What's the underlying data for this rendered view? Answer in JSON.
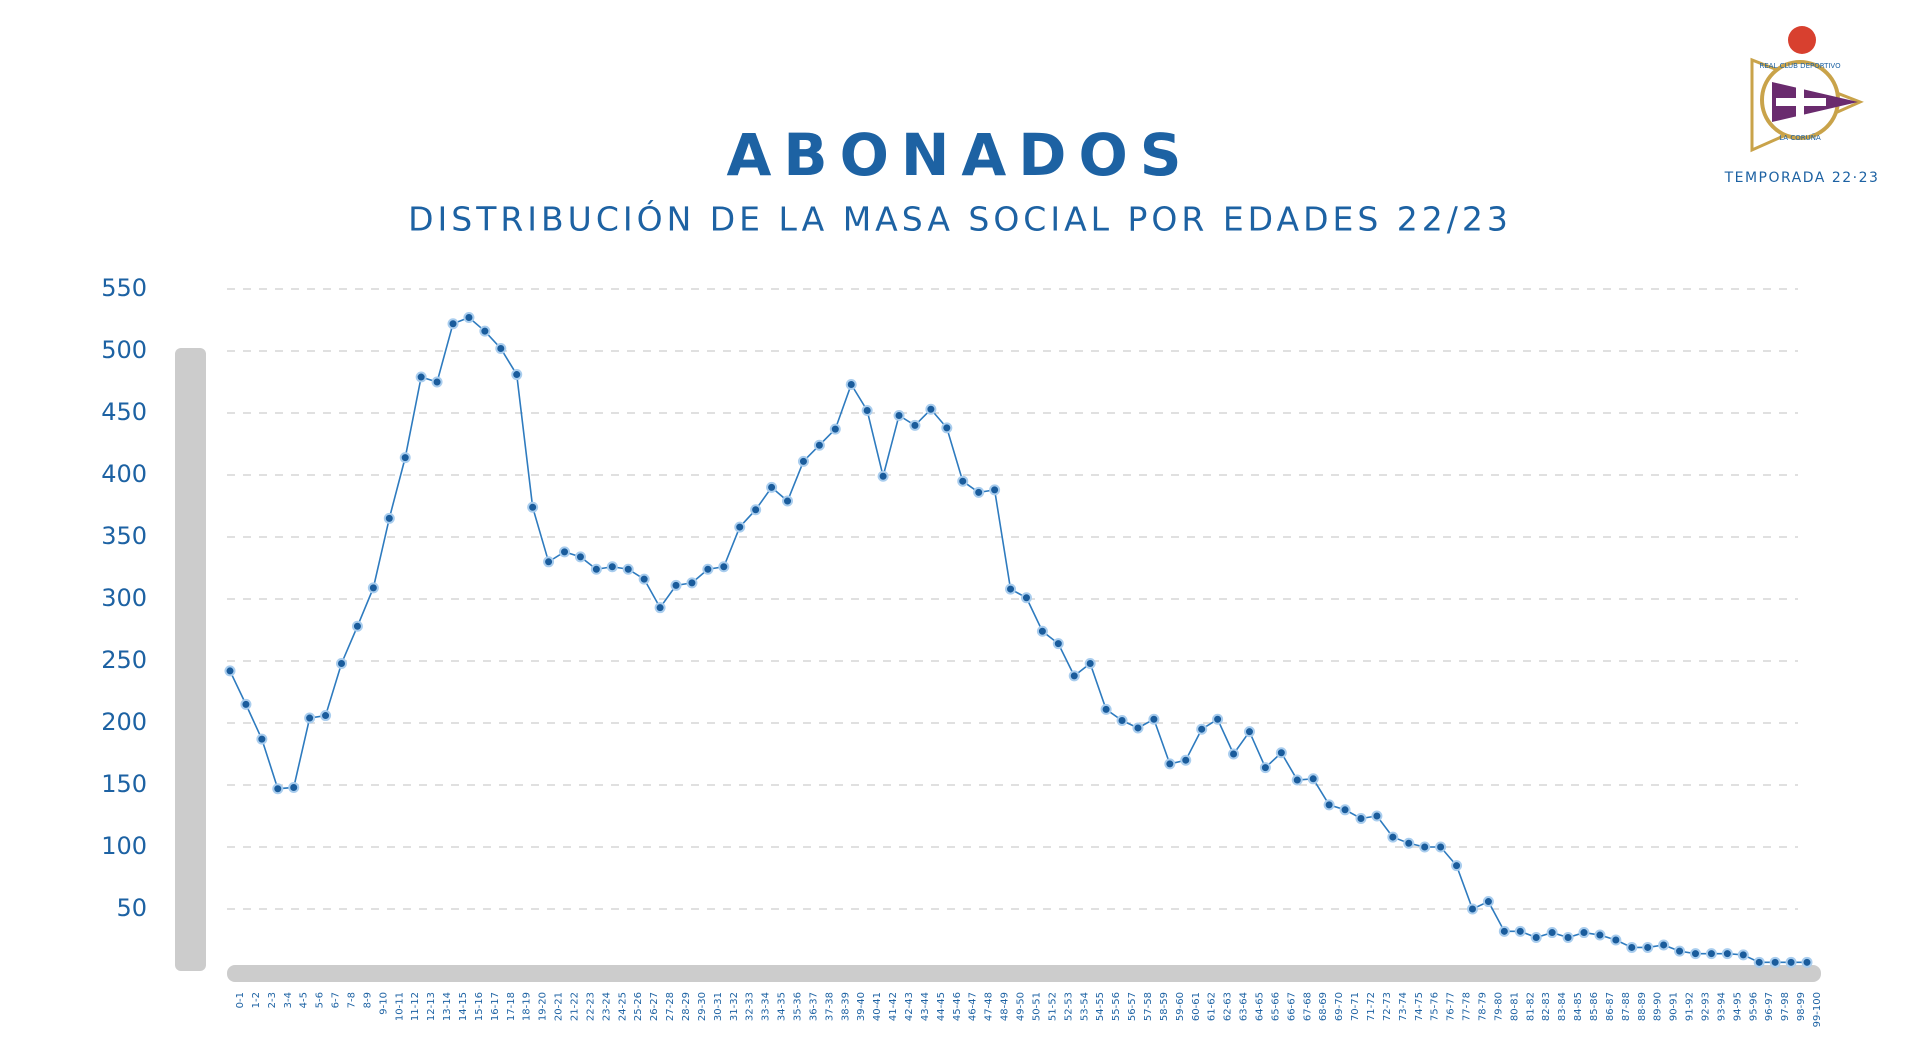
{
  "chart_data": {
    "type": "line",
    "title": "ABONADOS",
    "subtitle": "DISTRIBUCIÓN DE LA MASA SOCIAL POR EDADES 22/23",
    "logo": {
      "top": "REAL CLUB DEPORTIVO",
      "bottom": "LA CORUÑA",
      "season": "TEMPORADA 22·23"
    },
    "categories": [
      "0-1",
      "1-2",
      "2-3",
      "3-4",
      "4-5",
      "5-6",
      "6-7",
      "7-8",
      "8-9",
      "9-10",
      "10-11",
      "11-12",
      "12-13",
      "13-14",
      "14-15",
      "15-16",
      "16-17",
      "17-18",
      "18-19",
      "19-20",
      "20-21",
      "21-22",
      "22-23",
      "23-24",
      "24-25",
      "25-26",
      "26-27",
      "27-28",
      "28-29",
      "29-30",
      "30-31",
      "31-32",
      "32-33",
      "33-34",
      "34-35",
      "35-36",
      "36-37",
      "37-38",
      "38-39",
      "39-40",
      "40-41",
      "41-42",
      "42-43",
      "43-44",
      "44-45",
      "45-46",
      "46-47",
      "47-48",
      "48-49",
      "49-50",
      "50-51",
      "51-52",
      "52-53",
      "53-54",
      "54-55",
      "55-56",
      "56-57",
      "57-58",
      "58-59",
      "59-60",
      "60-61",
      "61-62",
      "62-63",
      "63-64",
      "64-65",
      "65-66",
      "66-67",
      "67-68",
      "68-69",
      "69-70",
      "70-71",
      "71-72",
      "72-73",
      "73-74",
      "74-75",
      "75-76",
      "76-77",
      "77-78",
      "78-79",
      "79-80",
      "80-81",
      "81-82",
      "82-83",
      "83-84",
      "84-85",
      "85-86",
      "86-87",
      "87-88",
      "88-89",
      "89-90",
      "90-91",
      "91-92",
      "92-93",
      "93-94",
      "94-95",
      "95-96",
      "96-97",
      "97-98",
      "98-99",
      "99-100"
    ],
    "series": [
      {
        "name": "Abonados",
        "color": "#2e7bbf",
        "values": [
          242,
          215,
          187,
          147,
          148,
          204,
          206,
          248,
          278,
          309,
          365,
          414,
          479,
          475,
          522,
          527,
          516,
          502,
          481,
          374,
          330,
          338,
          334,
          324,
          326,
          324,
          316,
          293,
          311,
          313,
          324,
          326,
          358,
          372,
          390,
          379,
          411,
          424,
          437,
          473,
          452,
          399,
          448,
          440,
          453,
          438,
          395,
          386,
          388,
          308,
          301,
          274,
          264,
          238,
          248,
          211,
          202,
          196,
          203,
          167,
          170,
          195,
          203,
          175,
          193,
          164,
          176,
          154,
          155,
          134,
          130,
          123,
          125,
          108,
          103,
          100,
          100,
          85,
          50,
          56,
          32,
          32,
          27,
          31,
          27,
          31,
          29,
          25,
          19,
          19,
          21,
          16,
          14,
          14,
          14,
          13,
          7,
          7,
          7,
          7
        ]
      }
    ],
    "ylim": [
      0,
      550
    ],
    "yticks": [
      50,
      100,
      150,
      200,
      250,
      300,
      350,
      400,
      450,
      500,
      550
    ],
    "grid": true
  }
}
